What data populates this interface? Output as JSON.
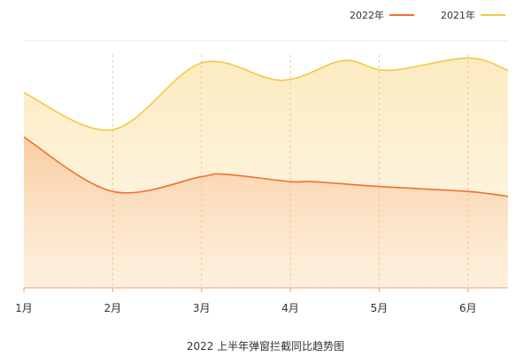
{
  "chart_data": {
    "type": "area",
    "title": "2022 上半年弹窗拦截同比趋势图",
    "categories": [
      "1月",
      "2月",
      "3月",
      "4月",
      "5月",
      "6月"
    ],
    "series": [
      {
        "name": "2022年",
        "color": "#f0702f",
        "x": [
          1,
          2,
          3,
          3.25,
          4,
          4.25,
          5,
          6,
          6.45
        ],
        "values": [
          0.61,
          0.39,
          0.45,
          0.46,
          0.43,
          0.43,
          0.41,
          0.39,
          0.37
        ]
      },
      {
        "name": "2021年",
        "color": "#f6c843",
        "x": [
          1,
          2,
          3,
          3.9,
          4.6,
          5.1,
          6,
          6.45
        ],
        "values": [
          0.79,
          0.64,
          0.91,
          0.84,
          0.92,
          0.88,
          0.93,
          0.88
        ]
      }
    ],
    "ylim": [
      0,
      1
    ],
    "grid": "vertical dashed at each month",
    "legend_position": "top-right"
  }
}
